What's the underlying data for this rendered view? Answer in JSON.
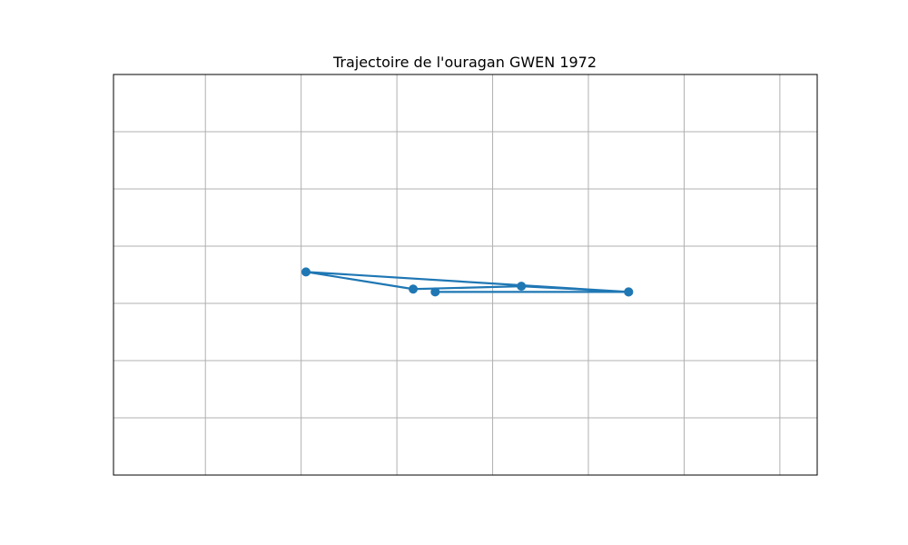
{
  "chart_data": {
    "type": "line",
    "title": "Trajectoire de l'ouragan GWEN 1972",
    "xlabel": "",
    "ylabel": "",
    "xlim": [
      0,
      7.35
    ],
    "ylim": [
      0,
      7
    ],
    "x_gridlines": [
      0.96,
      1.96,
      2.96,
      3.96,
      4.96,
      5.96,
      6.96
    ],
    "y_gridlines": [
      0,
      1,
      2,
      3,
      4,
      5,
      6
    ],
    "grid": true,
    "axis_tick_labels_shown": false,
    "series": [
      {
        "x": [
          3.36,
          5.38,
          4.26,
          3.13,
          2.01,
          5.38
        ],
        "y": [
          3.2,
          3.2,
          3.3,
          3.25,
          3.55,
          3.2
        ],
        "marker": "circle",
        "color": "#1f77b4"
      }
    ]
  }
}
